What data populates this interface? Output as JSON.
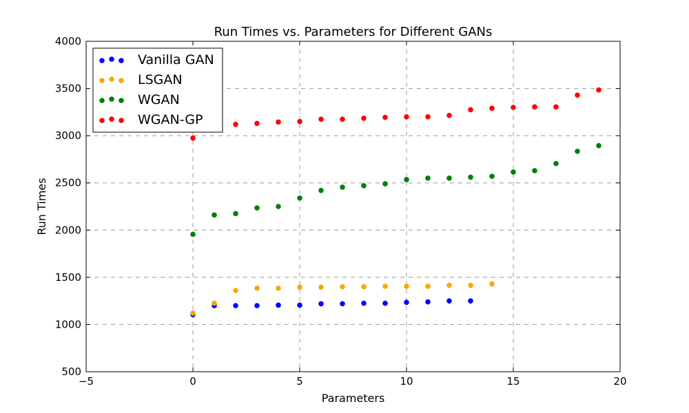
{
  "chart_data": {
    "type": "scatter",
    "title": "Run Times vs. Parameters for Different GANs",
    "xlabel": "Parameters",
    "ylabel": "Run Times",
    "xlim": [
      -5,
      20
    ],
    "ylim": [
      500,
      4000
    ],
    "xticks": [
      -5,
      0,
      5,
      10,
      15,
      20
    ],
    "yticks": [
      500,
      1000,
      1500,
      2000,
      2500,
      3000,
      3500,
      4000
    ],
    "xtick_labels": [
      "−5",
      "0",
      "5",
      "10",
      "15",
      "20"
    ],
    "ytick_labels": [
      "500",
      "1000",
      "1500",
      "2000",
      "2500",
      "3000",
      "3500",
      "4000"
    ],
    "grid": true,
    "legend_position": "top-left",
    "series": [
      {
        "name": "Vanilla GAN",
        "color": "#0000ff",
        "x": [
          0,
          1,
          2,
          3,
          4,
          5,
          6,
          7,
          8,
          9,
          10,
          11,
          12,
          13
        ],
        "y": [
          1105,
          1200,
          1200,
          1200,
          1205,
          1205,
          1220,
          1220,
          1225,
          1225,
          1235,
          1240,
          1250,
          1250
        ]
      },
      {
        "name": "LSGAN",
        "color": "#ffa500",
        "x": [
          0,
          1,
          2,
          3,
          4,
          5,
          6,
          7,
          8,
          9,
          10,
          11,
          12,
          13,
          14
        ],
        "y": [
          1120,
          1225,
          1360,
          1385,
          1385,
          1395,
          1395,
          1400,
          1400,
          1405,
          1405,
          1405,
          1415,
          1415,
          1430
        ]
      },
      {
        "name": "WGAN",
        "color": "#008000",
        "x": [
          0,
          1,
          2,
          3,
          4,
          5,
          6,
          7,
          8,
          9,
          10,
          11,
          12,
          13,
          14,
          15,
          16,
          17,
          18,
          19
        ],
        "y": [
          1955,
          2160,
          2175,
          2235,
          2250,
          2340,
          2420,
          2455,
          2470,
          2490,
          2535,
          2550,
          2550,
          2560,
          2570,
          2615,
          2630,
          2705,
          2835,
          2895
        ]
      },
      {
        "name": "WGAN-GP",
        "color": "#ff0000",
        "x": [
          0,
          2,
          3,
          4,
          5,
          6,
          7,
          8,
          9,
          10,
          11,
          12,
          13,
          14,
          15,
          16,
          17,
          18,
          19
        ],
        "y": [
          2975,
          3120,
          3130,
          3145,
          3150,
          3175,
          3175,
          3185,
          3195,
          3200,
          3200,
          3215,
          3275,
          3290,
          3300,
          3305,
          3305,
          3430,
          3485
        ]
      }
    ]
  }
}
